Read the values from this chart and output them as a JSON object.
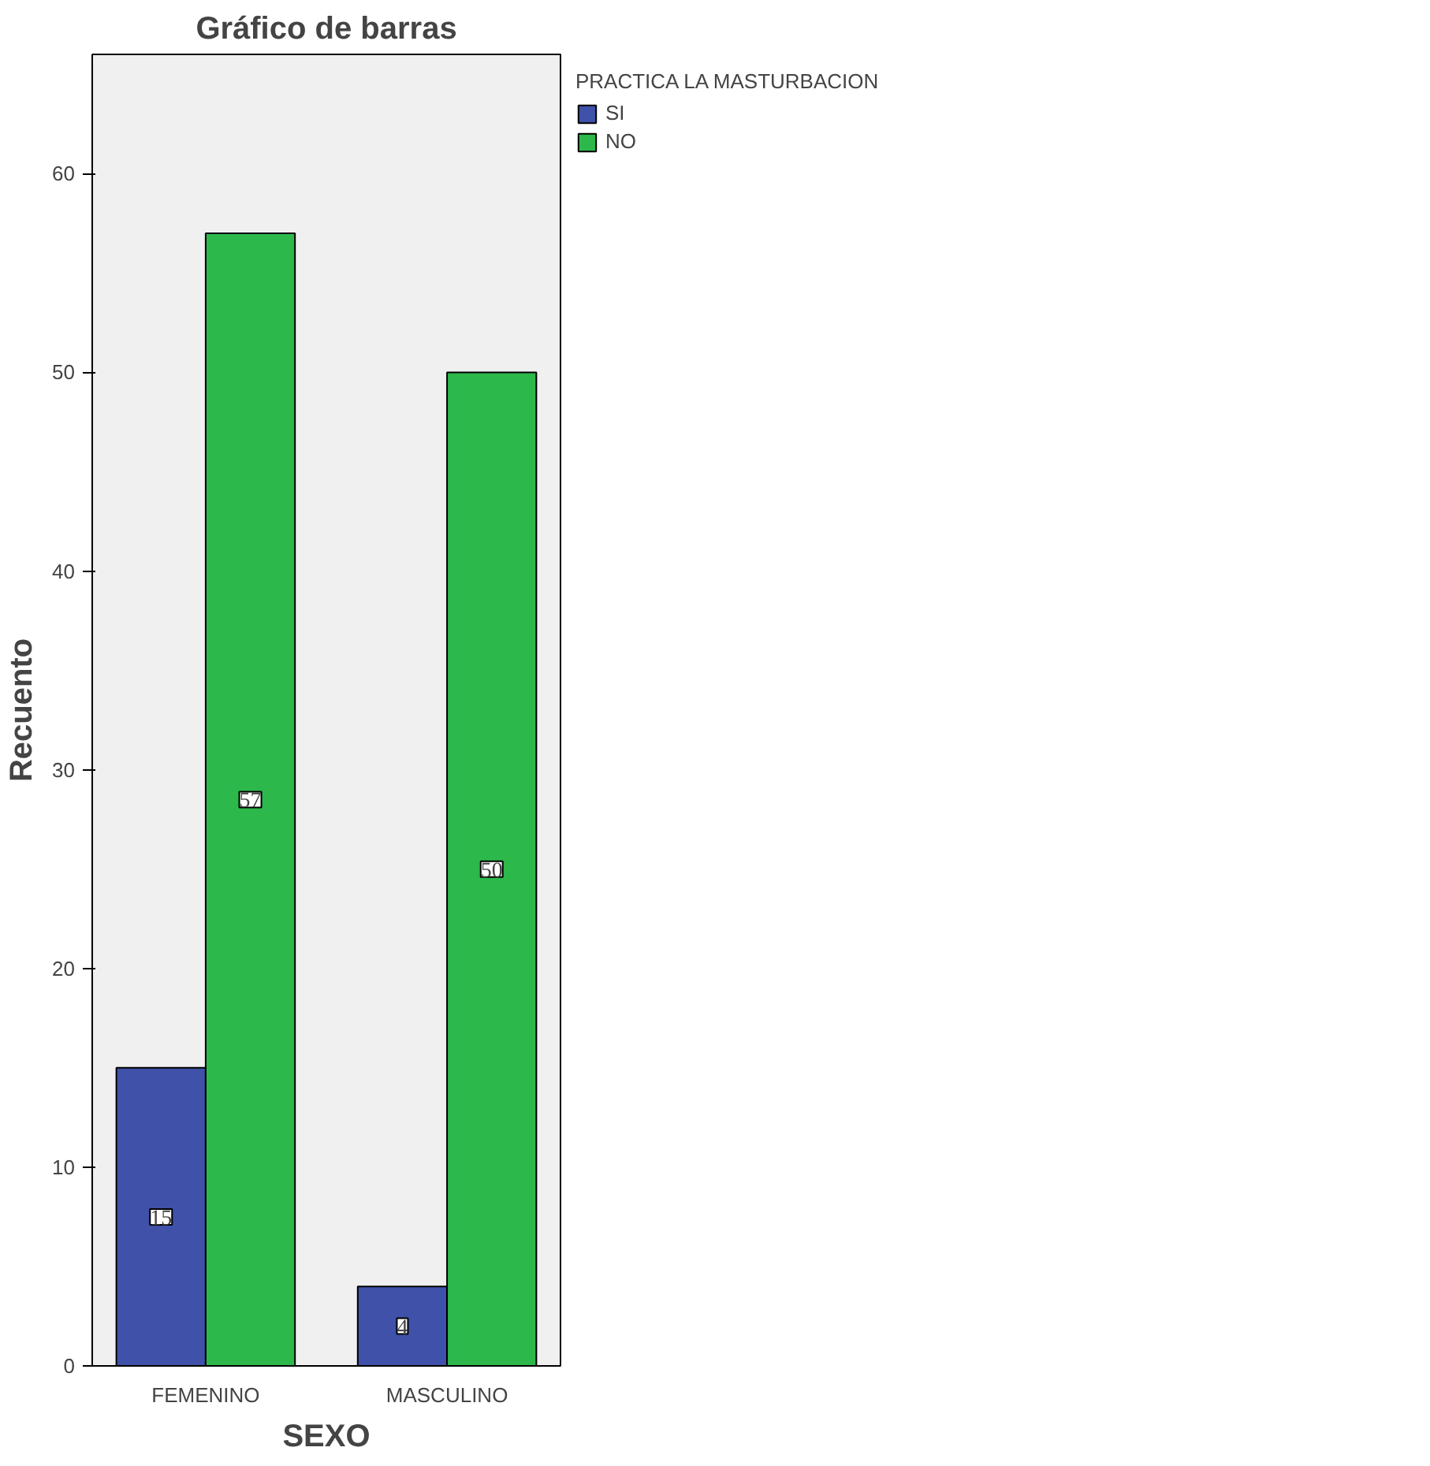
{
  "chart_data": {
    "type": "bar",
    "title": "Gráfico de barras",
    "xlabel": "SEXO",
    "ylabel": "Recuento",
    "legend_title": "PRACTICA LA MASTURBACION",
    "categories": [
      "FEMENINO",
      "MASCULINO"
    ],
    "series": [
      {
        "name": "SI",
        "color": "#3f51a8",
        "values": [
          15,
          4
        ]
      },
      {
        "name": "NO",
        "color": "#2db84b",
        "values": [
          57,
          50
        ]
      }
    ],
    "ylim": [
      0,
      66
    ],
    "yticks": [
      0,
      10,
      20,
      30,
      40,
      50,
      60
    ],
    "grid": false,
    "legend": "top right",
    "data_labels": true
  }
}
